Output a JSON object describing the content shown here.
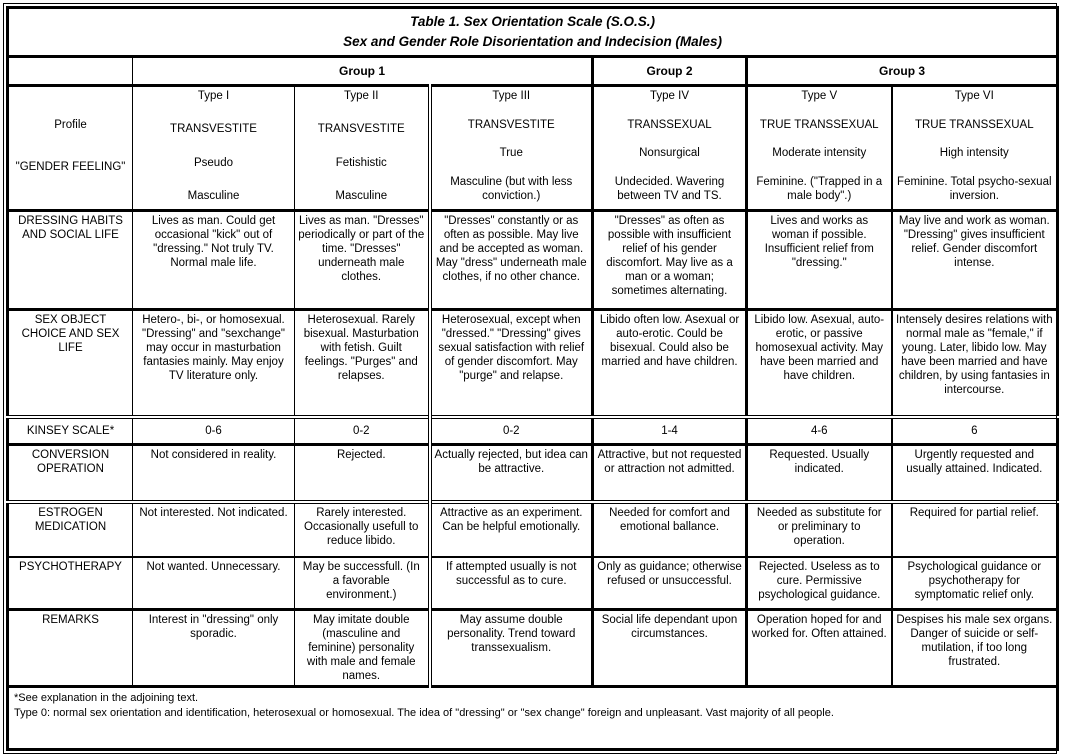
{
  "title": {
    "line1": "Table 1. Sex Orientation Scale (S.O.S.)",
    "line2": "Sex and Gender Role Disorientation and Indecision (Males)"
  },
  "groups": {
    "g1": "Group 1",
    "g2": "Group 2",
    "g3": "Group 3"
  },
  "profile": {
    "label1": "Profile",
    "label2": "\"GENDER FEELING\"",
    "types": [
      {
        "type": "Type I",
        "category": "TRANSVESTITE",
        "subtype": "Pseudo",
        "feeling": "Masculine"
      },
      {
        "type": "Type II",
        "category": "TRANSVESTITE",
        "subtype": "Fetishistic",
        "feeling": "Masculine"
      },
      {
        "type": "Type III",
        "category": "TRANSVESTITE",
        "subtype": "True",
        "feeling": "Masculine (but with less conviction.)"
      },
      {
        "type": "Type IV",
        "category": "TRANSSEXUAL",
        "subtype": "Nonsurgical",
        "feeling": "Undecided. Wavering between TV and TS."
      },
      {
        "type": "Type V",
        "category": "TRUE TRANSSEXUAL",
        "subtype": "Moderate intensity",
        "feeling": "Feminine. (\"Trapped in a male body\".)"
      },
      {
        "type": "Type VI",
        "category": "TRUE TRANSSEXUAL",
        "subtype": "High intensity",
        "feeling": "Feminine. Total psycho-sexual inversion."
      }
    ]
  },
  "rows": [
    {
      "label": "DRESSING HABITS AND SOCIAL LIFE",
      "cells": [
        "Lives as man. Could get occasional \"kick\" out of \"dressing.\" Not truly TV. Normal male life.",
        "Lives as man. \"Dresses\" periodically or part of the time. \"Dresses\" underneath male clothes.",
        "\"Dresses\" constantly or as often as possible. May live and be accepted as woman. May \"dress\" underneath male clothes, if no other chance.",
        "\"Dresses\" as often as possible with insufficient relief of his gender discomfort. May live as a man or a woman; sometimes alternating.",
        "Lives and works as woman if possible. Insufficient relief from \"dressing.\"",
        "May live and work as woman. \"Dressing\" gives insufficient relief. Gender discomfort intense."
      ]
    },
    {
      "label": "SEX OBJECT CHOICE AND SEX LIFE",
      "cells": [
        "Hetero-, bi-, or homosexual. \"Dressing\" and \"sexchange\" may occur in masturbation fantasies mainly. May enjoy TV literature only.",
        "Heterosexual. Rarely bisexual. Masturbation with fetish. Guilt feelings. \"Purges\" and relapses.",
        "Heterosexual, except when \"dressed.\" \"Dressing\" gives sexual satisfaction with relief of gender discomfort. May \"purge\" and relapse.",
        "Libido often low. Asexual or auto-erotic. Could be bisexual. Could also be married and have children.",
        "Libido low. Asexual, auto-erotic, or passive homosexual activity. May have been married and have children.",
        "Intensely desires relations with normal male as \"female,\" if young. Later, libido low. May have been married and have children, by using fantasies in intercourse."
      ]
    },
    {
      "label": "KINSEY SCALE*",
      "cells": [
        "0-6",
        "0-2",
        "0-2",
        "1-4",
        "4-6",
        "6"
      ]
    },
    {
      "label": "CONVERSION OPERATION",
      "cells": [
        "Not considered in reality.",
        "Rejected.",
        "Actually rejected, but idea can be attractive.",
        "Attractive, but not requested or attraction not admitted.",
        "Requested. Usually indicated.",
        "Urgently requested and usually attained. Indicated."
      ]
    },
    {
      "label": "ESTROGEN MEDICATION",
      "cells": [
        "Not interested. Not indicated.",
        "Rarely interested. Occasionally usefull to reduce libido.",
        "Attractive as an experiment. Can be helpful emotionally.",
        "Needed for comfort and emotional ballance.",
        "Needed as substitute for or preliminary to operation.",
        "Required for partial relief."
      ]
    },
    {
      "label": "PSYCHOTHERAPY",
      "cells": [
        "Not wanted. Unnecessary.",
        "May be successfull. (In a favorable environment.)",
        "If attempted usually is not successful as to cure.",
        "Only as guidance; otherwise refused or unsuccessful.",
        "Rejected. Useless as to cure. Permissive psychological guidance.",
        "Psychological guidance or psychotherapy for symptomatic relief only."
      ]
    },
    {
      "label": "REMARKS",
      "cells": [
        "Interest in \"dressing\" only sporadic.",
        "May imitate double (masculine and feminine) personality with male and female names.",
        "May assume double personality. Trend toward transsexualism.",
        "Social life dependant upon circumstances.",
        "Operation hoped for and worked for. Often attained.",
        "Despises his male sex organs. Danger of suicide or self-mutilation, if too long frustrated."
      ]
    }
  ],
  "footnotes": {
    "line1": "*See explanation in the adjoining text.",
    "line2": "Type 0: normal sex orientation and identification, heterosexual or homosexual. The idea of \"dressing\" or \"sex change\" foreign and unpleasant. Vast majority of all people."
  }
}
